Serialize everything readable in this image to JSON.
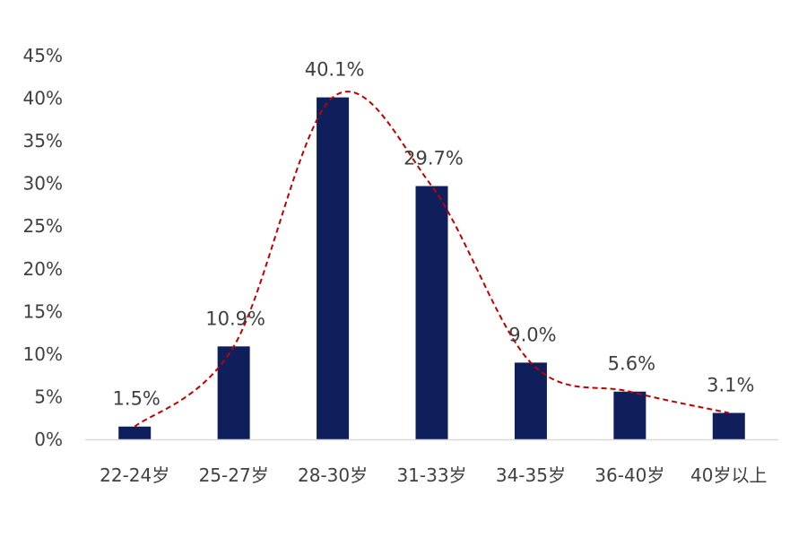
{
  "chart_data": {
    "type": "bar",
    "categories": [
      "22-24岁",
      "25-27岁",
      "28-30岁",
      "31-33岁",
      "34-35岁",
      "36-40岁",
      "40岁以上"
    ],
    "values": [
      1.5,
      10.9,
      40.1,
      29.7,
      9.0,
      5.6,
      3.1
    ],
    "data_labels": [
      "1.5%",
      "10.9%",
      "40.1%",
      "29.7%",
      "9.0%",
      "5.6%",
      "3.1%"
    ],
    "y_ticks": [
      "0%",
      "5%",
      "10%",
      "15%",
      "20%",
      "25%",
      "30%",
      "35%",
      "40%",
      "45%"
    ],
    "ylim": [
      0,
      45
    ],
    "grid": false,
    "trend_line": true,
    "title": "",
    "xlabel": "",
    "ylabel": "",
    "colors": {
      "bar": "#0f1f5c",
      "trend": "#c00000",
      "axis": "#d9d9d9",
      "text": "#404040"
    }
  }
}
